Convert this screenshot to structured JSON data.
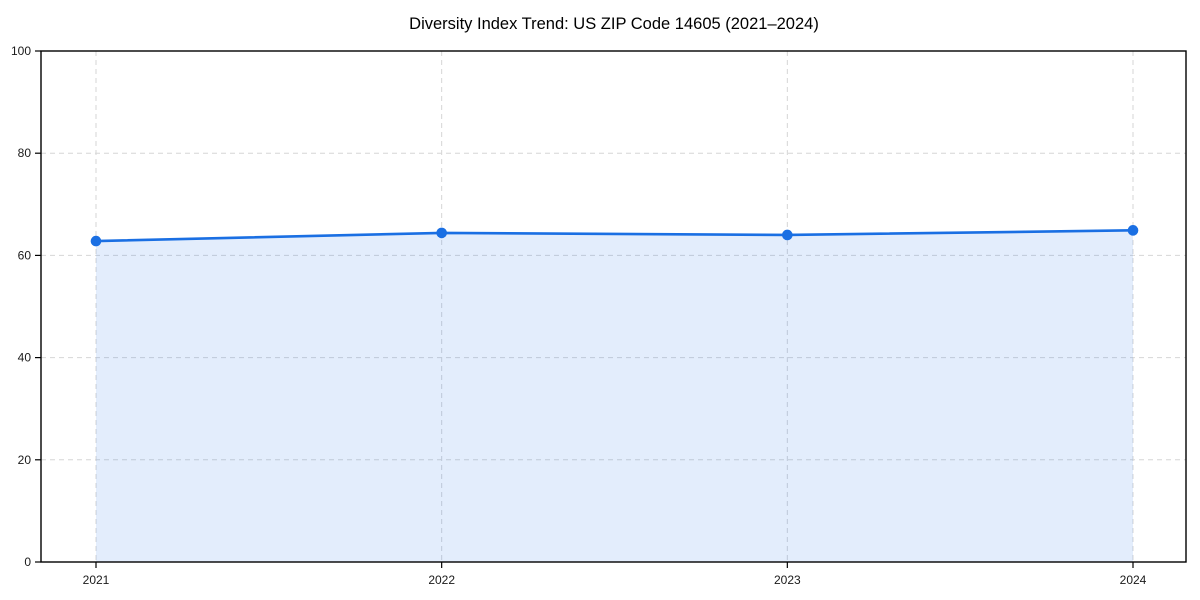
{
  "chart_data": {
    "type": "line",
    "title": "Diversity Index Trend: US ZIP Code 14605 (2021–2024)",
    "categories": [
      "2021",
      "2022",
      "2023",
      "2024"
    ],
    "series": [
      {
        "name": "Diversity Index",
        "values": [
          62.8,
          64.4,
          64.0,
          64.9
        ]
      }
    ],
    "xlabel": "",
    "ylabel": "",
    "ylim": [
      0,
      100
    ],
    "yticks": [
      0,
      20,
      40,
      60,
      80,
      100
    ],
    "grid": true,
    "grid_style": "dashed",
    "legend_position": "none",
    "area_fill": true,
    "marker": "circle",
    "colors": {
      "line": "#1a6fe3",
      "area_fill_rgba": "rgba(26, 111, 227, 0.12)",
      "grid": "#d6d6d6",
      "spine": "#000000",
      "tick_label": "#1a1a1a",
      "title": "#000000",
      "background": "#ffffff"
    }
  }
}
